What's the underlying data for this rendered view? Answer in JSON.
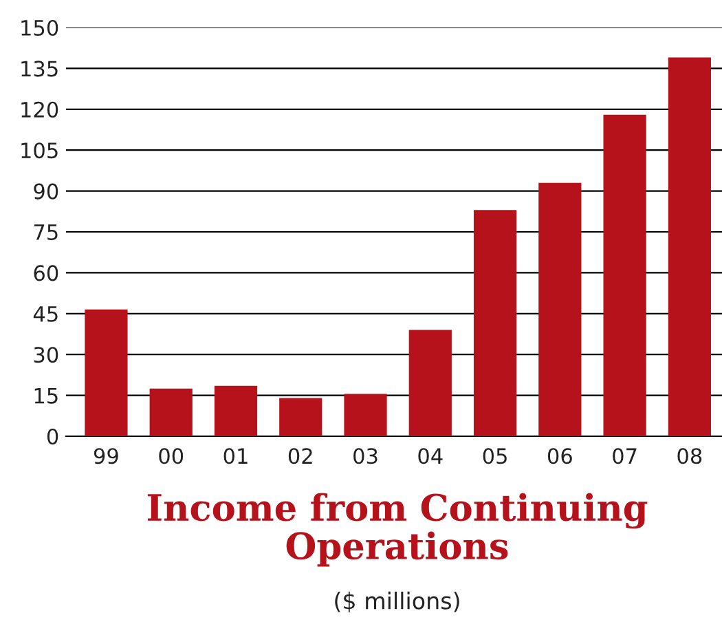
{
  "chart_data": {
    "type": "bar",
    "title": "Income from Continuing Operations",
    "subtitle": "($ millions)",
    "categories": [
      "99",
      "00",
      "01",
      "02",
      "03",
      "04",
      "05",
      "06",
      "07",
      "08"
    ],
    "values": [
      46.5,
      17.5,
      18.5,
      14,
      15.5,
      39,
      83,
      93,
      118,
      139
    ],
    "color": "#b5121b",
    "ylim": [
      0,
      150
    ],
    "yticks": [
      0,
      15,
      30,
      45,
      60,
      75,
      90,
      105,
      120,
      135,
      150
    ],
    "grid": "y",
    "legend": false
  }
}
